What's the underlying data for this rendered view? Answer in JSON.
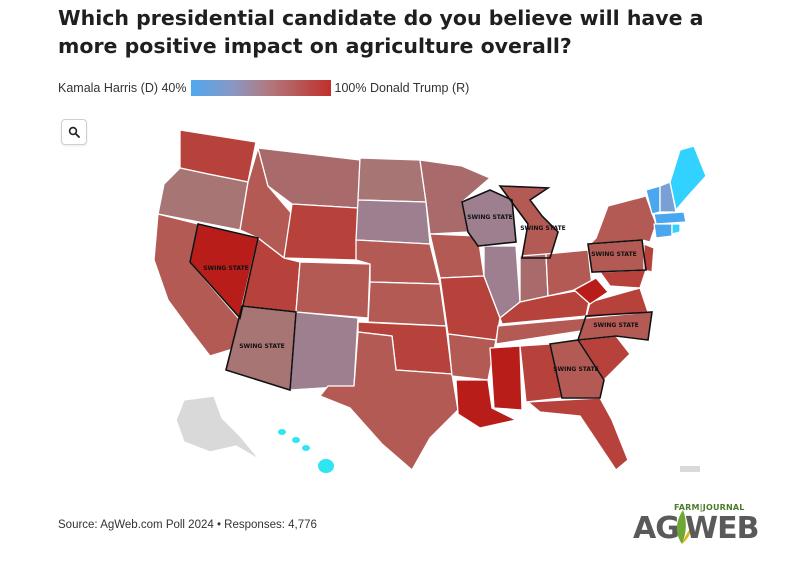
{
  "title": "Which presidential candidate do you believe will have a more positive impact on agriculture overall?",
  "legend": {
    "left_label": "Kamala Harris (D) 40%",
    "right_label": "100% Donald Trump (R)",
    "low_color": "#4fa8ef",
    "high_color": "#c0302b"
  },
  "search": {
    "icon": "magnifier-icon"
  },
  "map": {
    "swing_label": "SWING STATE",
    "swing_states": [
      "Nevada",
      "Arizona",
      "Wisconsin",
      "Michigan",
      "Pennsylvania",
      "North Carolina",
      "Georgia"
    ],
    "no_data_color": "#d9d9d9",
    "colors": {
      "strong_trump": "#b81d1a",
      "trump": "#b7423b",
      "lean_trump": "#b45a55",
      "mixed": "#a87575",
      "lean_mixed": "#9d7f8f",
      "harris": "#4aa6ee",
      "strong_harris": "#31d2ff",
      "hawaii": "#2ee5f2"
    }
  },
  "source": "Source: AgWeb.com Poll 2024 • Responses: 4,776",
  "logo": {
    "top_text": "FARM|JOURNAL",
    "left_text": "AG",
    "right_text": "WEB"
  }
}
